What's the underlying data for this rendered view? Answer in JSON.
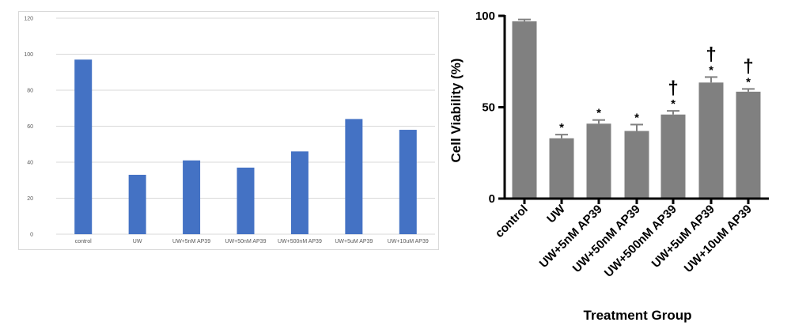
{
  "chart_data": [
    {
      "type": "bar",
      "categories": [
        "control",
        "UW",
        "UW+5nM AP39",
        "UW+50nM AP39",
        "UW+500nM AP39",
        "UW+5uM AP39",
        "UW+10uM AP39"
      ],
      "values": [
        97,
        33,
        41,
        37,
        46,
        64,
        58
      ],
      "title": "",
      "xlabel": "",
      "ylabel": "",
      "ylim": [
        0,
        120
      ],
      "yticks": [
        "0",
        "20",
        "40",
        "60",
        "80",
        "100",
        "120"
      ],
      "grid": true,
      "bar_color": "#4472c4"
    },
    {
      "type": "bar",
      "categories": [
        "control",
        "UW",
        "UW+5nM AP39",
        "UW+50nM AP39",
        "UW+500nM AP39",
        "UW+5uM AP39",
        "UW+10uM AP39"
      ],
      "values": [
        97,
        33,
        41,
        37,
        46,
        63.5,
        58.5
      ],
      "errors": [
        1,
        2,
        2,
        3.5,
        2,
        3,
        1.5
      ],
      "annotations": [
        {
          "category": "UW",
          "marks": [
            "*"
          ]
        },
        {
          "category": "UW+5nM AP39",
          "marks": [
            "*"
          ]
        },
        {
          "category": "UW+50nM AP39",
          "marks": [
            "*"
          ]
        },
        {
          "category": "UW+500nM AP39",
          "marks": [
            "*",
            "†"
          ]
        },
        {
          "category": "UW+5uM AP39",
          "marks": [
            "*",
            "†"
          ]
        },
        {
          "category": "UW+10uM AP39",
          "marks": [
            "*",
            "†"
          ]
        }
      ],
      "title": "",
      "xlabel": "Treatment Group",
      "ylabel": "Cell Viability (%)",
      "ylim": [
        0,
        100
      ],
      "yticks": [
        "0",
        "50",
        "100"
      ],
      "grid": false,
      "bar_color": "#808080"
    }
  ]
}
